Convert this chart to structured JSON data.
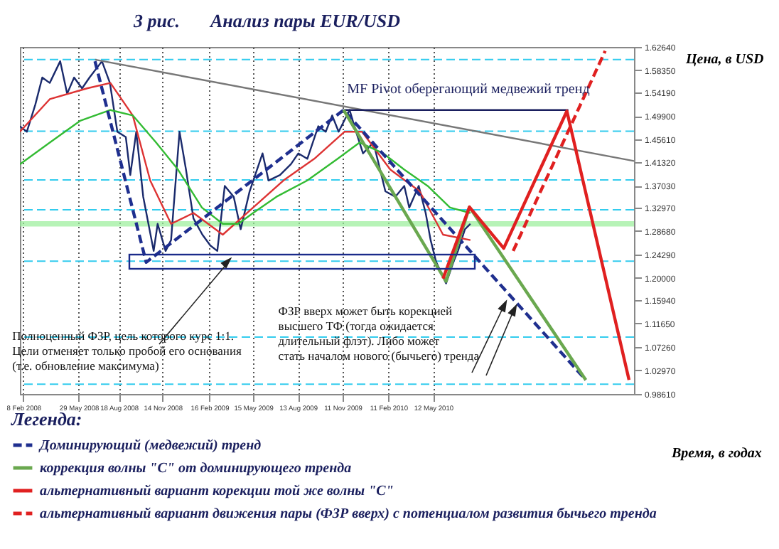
{
  "chart_data": {
    "type": "line",
    "title": "Анализ пары EUR/USD",
    "subtitle": "3 рис.",
    "xlabel": "Время, в годах",
    "ylabel": "Цена, в USD",
    "legend_title": "Легенда:",
    "legend": "bottom left",
    "grid": "x",
    "marker": "none",
    "xlim": [
      "2008-02-01",
      "2011-06-20"
    ],
    "xticks": [
      {
        "value": "2008-02-08",
        "label": "8 Feb 2008"
      },
      {
        "value": "2008-05-29",
        "label": "29 May 2008"
      },
      {
        "value": "2008-08-18",
        "label": "18 Aug 2008"
      },
      {
        "value": "2008-11-14",
        "label": "14 Nov 2008"
      },
      {
        "value": "2009-02-16",
        "label": "16 Feb 2009"
      },
      {
        "value": "2009-05-15",
        "label": "15 May 2009"
      },
      {
        "value": "2009-08-13",
        "label": "13 Aug 2009"
      },
      {
        "value": "2009-11-11",
        "label": "11 Nov 2009"
      },
      {
        "value": "2010-02-11",
        "label": "11 Feb 2010"
      },
      {
        "value": "2010-05-12",
        "label": "12 May 2010"
      }
    ],
    "ylim": [
      0.9861,
      1.6264
    ],
    "yticks": [
      {
        "value": 0.9861,
        "label": "0.98610"
      },
      {
        "value": 1.0297,
        "label": "1.02970"
      },
      {
        "value": 1.0726,
        "label": "1.07260"
      },
      {
        "value": 1.1165,
        "label": "1.11650"
      },
      {
        "value": 1.1594,
        "label": "1.15940"
      },
      {
        "value": 1.2,
        "label": "1.20000"
      },
      {
        "value": 1.2429,
        "label": "1.24290"
      },
      {
        "value": 1.2868,
        "label": "1.28680"
      },
      {
        "value": 1.3297,
        "label": "1.32970"
      },
      {
        "value": 1.3703,
        "label": "1.37030"
      },
      {
        "value": 1.4132,
        "label": "1.41320"
      },
      {
        "value": 1.4561,
        "label": "1.45610"
      },
      {
        "value": 1.499,
        "label": "1.49900"
      },
      {
        "value": 1.5419,
        "label": "1.54190"
      },
      {
        "value": 1.5835,
        "label": "1.58350"
      },
      {
        "value": 1.6264,
        "label": "1.62640"
      }
    ],
    "series": [
      {
        "color": "#1a2a6c",
        "line_style": "solid",
        "x": [
          "2008-02-01",
          "2008-02-15",
          "2008-03-03",
          "2008-03-17",
          "2008-04-01",
          "2008-04-22",
          "2008-05-06",
          "2008-05-20",
          "2008-06-05",
          "2008-06-20",
          "2008-07-15",
          "2008-07-31",
          "2008-08-15",
          "2008-09-01",
          "2008-09-10",
          "2008-09-22",
          "2008-10-06",
          "2008-10-27",
          "2008-11-04",
          "2008-11-20",
          "2008-12-01",
          "2008-12-18",
          "2008-12-31",
          "2009-01-15",
          "2009-02-02",
          "2009-02-18",
          "2009-03-04",
          "2009-03-19",
          "2009-04-06",
          "2009-04-20",
          "2009-05-08",
          "2009-06-03",
          "2009-06-15",
          "2009-07-08",
          "2009-07-30",
          "2009-08-14",
          "2009-09-01",
          "2009-09-23",
          "2009-10-08",
          "2009-10-21",
          "2009-11-03",
          "2009-11-25",
          "2009-12-08",
          "2009-12-22",
          "2010-01-12",
          "2010-02-05",
          "2010-02-25",
          "2010-03-15",
          "2010-03-25",
          "2010-04-13",
          "2010-04-27",
          "2010-05-07",
          "2010-05-18",
          "2010-06-07",
          "2010-06-22",
          "2010-07-01",
          "2010-07-15",
          "2010-07-26"
        ],
        "values": [
          1.48,
          1.47,
          1.52,
          1.57,
          1.56,
          1.6,
          1.54,
          1.57,
          1.55,
          1.57,
          1.6,
          1.56,
          1.47,
          1.46,
          1.39,
          1.47,
          1.35,
          1.25,
          1.3,
          1.25,
          1.27,
          1.47,
          1.4,
          1.31,
          1.28,
          1.26,
          1.25,
          1.37,
          1.35,
          1.29,
          1.36,
          1.43,
          1.38,
          1.39,
          1.41,
          1.43,
          1.42,
          1.48,
          1.47,
          1.5,
          1.47,
          1.51,
          1.47,
          1.43,
          1.45,
          1.36,
          1.35,
          1.37,
          1.33,
          1.37,
          1.32,
          1.27,
          1.23,
          1.19,
          1.23,
          1.25,
          1.29,
          1.3
        ]
      },
      {
        "color": "#dd3333",
        "line_style": "solid",
        "x": [
          "2008-02-01",
          "2008-04-01",
          "2008-06-15",
          "2008-08-01",
          "2008-09-15",
          "2008-10-20",
          "2008-12-01",
          "2009-01-15",
          "2009-03-15",
          "2009-05-15",
          "2009-07-15",
          "2009-09-15",
          "2009-11-15",
          "2009-12-20",
          "2010-02-15",
          "2010-04-15",
          "2010-06-01",
          "2010-07-26"
        ],
        "values": [
          1.47,
          1.53,
          1.55,
          1.56,
          1.5,
          1.38,
          1.3,
          1.32,
          1.28,
          1.33,
          1.38,
          1.42,
          1.47,
          1.47,
          1.4,
          1.36,
          1.28,
          1.27
        ]
      },
      {
        "color": "#33bb33",
        "line_style": "solid",
        "x": [
          "2008-02-01",
          "2008-04-01",
          "2008-06-01",
          "2008-08-01",
          "2008-09-15",
          "2008-11-01",
          "2008-12-15",
          "2009-02-01",
          "2009-03-15",
          "2009-04-15",
          "2009-05-15",
          "2009-07-01",
          "2009-09-01",
          "2009-11-01",
          "2009-12-15",
          "2010-02-01",
          "2010-03-15",
          "2010-05-01",
          "2010-06-15",
          "2010-07-26"
        ],
        "values": [
          1.41,
          1.45,
          1.49,
          1.51,
          1.5,
          1.45,
          1.4,
          1.33,
          1.3,
          1.3,
          1.32,
          1.35,
          1.38,
          1.42,
          1.45,
          1.43,
          1.4,
          1.37,
          1.33,
          1.32
        ]
      },
      {
        "color": "#777777",
        "line_style": "solid",
        "x": [
          "2008-07-01",
          "2011-06-20"
        ],
        "values": [
          1.603,
          1.416
        ]
      },
      {
        "color": "#1a1f5e",
        "line_style": "solid",
        "x": [
          "2009-11-13",
          "2011-02-08"
        ],
        "values": [
          1.51,
          1.51
        ]
      },
      {
        "name": "Доминирующий (медвежий) тренд",
        "color": "#1f2f8f",
        "line_style": "dashed",
        "x": [
          "2008-07-01",
          "2008-10-12",
          "2009-11-13",
          "2011-03-15"
        ],
        "values": [
          1.6,
          1.229,
          1.51,
          1.012
        ]
      },
      {
        "name": "коррекция волны \"C\" от доминирующего тренда",
        "color": "#6aa84f",
        "line_style": "solid",
        "x": [
          "2009-11-13",
          "2010-06-07",
          "2010-07-24",
          "2011-03-15"
        ],
        "values": [
          1.51,
          1.194,
          1.331,
          1.012
        ]
      },
      {
        "name": "альтернативный вариант корекции той же волны \"C\"",
        "color": "#e02020",
        "line_style": "solid",
        "x": [
          "2010-06-01",
          "2010-07-24",
          "2010-10-01",
          "2011-02-05",
          "2011-06-10"
        ],
        "values": [
          1.199,
          1.331,
          1.255,
          1.508,
          1.012
        ]
      },
      {
        "name": "альтернативный вариант движения пары (ФЗР вверх) с потенциалом развития бычьего тренда",
        "color": "#e02020",
        "line_style": "dashed",
        "x": [
          "2010-10-20",
          "2011-04-23"
        ],
        "values": [
          1.25,
          1.619
        ]
      }
    ],
    "ref_lines": [
      {
        "axis": "y",
        "value": 1.603,
        "color": "#33ccee",
        "line_style": "dashed"
      },
      {
        "axis": "y",
        "value": 1.471,
        "color": "#33ccee",
        "line_style": "dashed"
      },
      {
        "axis": "y",
        "value": 1.381,
        "color": "#33ccee",
        "line_style": "dashed"
      },
      {
        "axis": "y",
        "value": 1.326,
        "color": "#33ccee",
        "line_style": "dashed"
      },
      {
        "axis": "y",
        "value": 1.231,
        "color": "#33ccee",
        "line_style": "dashed"
      },
      {
        "axis": "y",
        "value": 1.091,
        "color": "#33ccee",
        "line_style": "dashed"
      },
      {
        "axis": "y",
        "value": 1.004,
        "color": "#33ccee",
        "line_style": "dashed"
      }
    ],
    "bands": [
      {
        "axis": "y",
        "from": 1.295,
        "to": 1.305,
        "color": "#99ee99"
      }
    ],
    "annotations": [
      {
        "text": "MF Pivot оберегающий медвежий тренд",
        "x": "2009-11-20",
        "y": 1.53
      },
      {
        "text": "Полноценный ФЗР, цель которого курс 1:1.\nЦели отменяет только пробой его основания\n(т.е. обновление максимума)",
        "x": "2009-04-01",
        "y": 1.235
      },
      {
        "text": "ФЗР вверх может быть корекцией\nвысшего  ТФ  (тогда  ожидается\nдлительный  флэт). Либо  может\nстать началом нового (бычьего) тренда",
        "x": "2010-10-08",
        "y": 1.156
      }
    ]
  }
}
